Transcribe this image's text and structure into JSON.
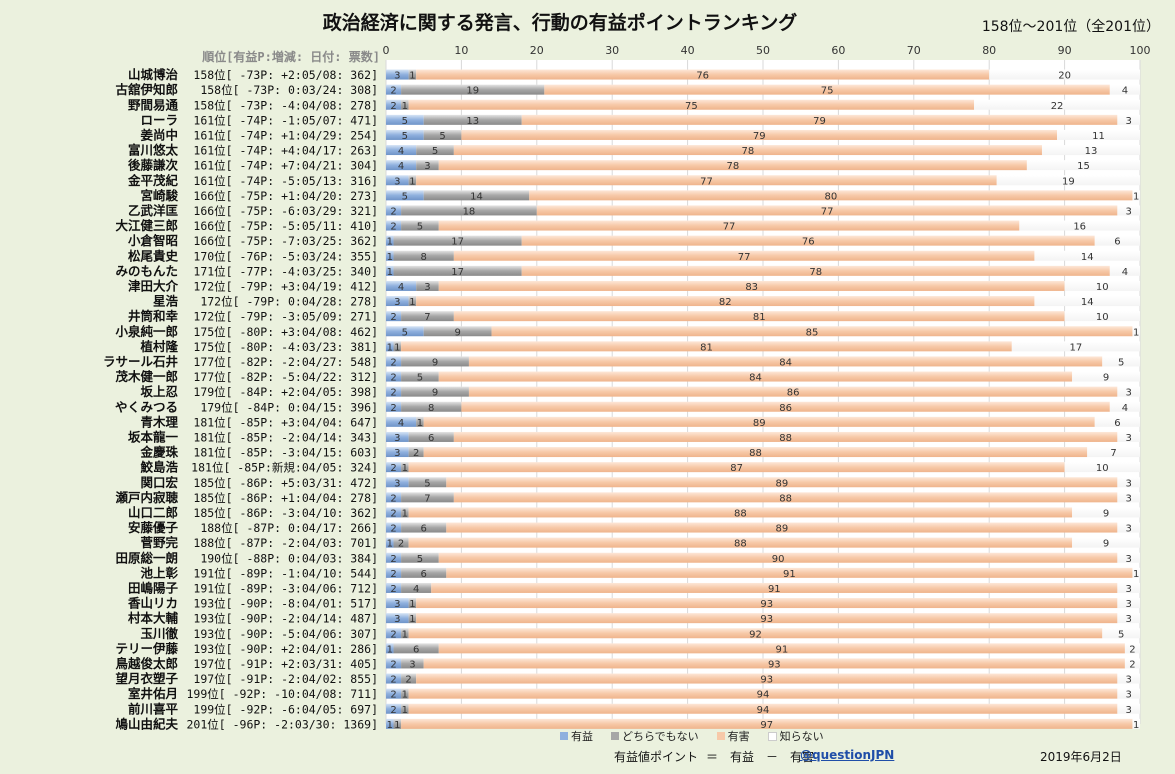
{
  "title": "政治経済に関する発言、行動の有益ポイントランキング",
  "range_label": "158位～201位（全201位）",
  "column_header": "順位[有益P:増減: 日付: 票数]",
  "legend": [
    {
      "name": "有益",
      "color": "#8fb0de"
    },
    {
      "name": "どちらでもない",
      "color": "#a6a6a6"
    },
    {
      "name": "有害",
      "color": "#f7c9a8"
    },
    {
      "name": "知らない",
      "color": "#ffffff"
    }
  ],
  "formula": {
    "label": "有益値ポイント",
    "text": "＝　有益　－　有害"
  },
  "handle": "@questionJPN",
  "date": "2019年6月2日",
  "chart_data": {
    "type": "bar",
    "orientation": "horizontal",
    "stacked": true,
    "xlim": [
      0,
      100
    ],
    "x_ticks": [
      0,
      10,
      20,
      30,
      40,
      50,
      60,
      70,
      80,
      90,
      100
    ],
    "grid": true,
    "legend_position": "bottom",
    "series_names": [
      "有益",
      "どちらでもない",
      "有害",
      "知らない"
    ],
    "rows": [
      {
        "name": "山城博治",
        "rank": "158位[ -73P: +2:05/08:  362]",
        "values": [
          3,
          1,
          76,
          20
        ]
      },
      {
        "name": "古舘伊知郎",
        "rank": "158位[ -73P:  0:03/24:  308]",
        "values": [
          2,
          19,
          75,
          4
        ]
      },
      {
        "name": "野間易通",
        "rank": "158位[ -73P: -4:04/08:  278]",
        "values": [
          2,
          1,
          75,
          22
        ]
      },
      {
        "name": "ローラ",
        "rank": "161位[ -74P: -1:05/07:  471]",
        "values": [
          5,
          13,
          79,
          3
        ]
      },
      {
        "name": "姜尚中",
        "rank": "161位[ -74P: +1:04/29:  254]",
        "values": [
          5,
          5,
          79,
          11
        ]
      },
      {
        "name": "富川悠太",
        "rank": "161位[ -74P: +4:04/17:  263]",
        "values": [
          4,
          5,
          78,
          13
        ]
      },
      {
        "name": "後藤謙次",
        "rank": "161位[ -74P: +7:04/21:  304]",
        "values": [
          4,
          3,
          78,
          15
        ]
      },
      {
        "name": "金平茂紀",
        "rank": "161位[ -74P: -5:05/13:  316]",
        "values": [
          3,
          1,
          77,
          19
        ]
      },
      {
        "name": "宮崎駿",
        "rank": "166位[ -75P: +1:04/20:  273]",
        "values": [
          5,
          14,
          80,
          1
        ]
      },
      {
        "name": "乙武洋匡",
        "rank": "166位[ -75P: -6:03/29:  321]",
        "values": [
          2,
          18,
          77,
          3
        ]
      },
      {
        "name": "大江健三郎",
        "rank": "166位[ -75P: -5:05/11:  410]",
        "values": [
          2,
          5,
          77,
          16
        ]
      },
      {
        "name": "小倉智昭",
        "rank": "166位[ -75P: -7:03/25:  362]",
        "values": [
          1,
          17,
          76,
          6
        ]
      },
      {
        "name": "松尾貴史",
        "rank": "170位[ -76P: -5:03/24:  355]",
        "values": [
          1,
          8,
          77,
          14
        ]
      },
      {
        "name": "みのもんた",
        "rank": "171位[ -77P: -4:03/25:  340]",
        "values": [
          1,
          17,
          78,
          4
        ]
      },
      {
        "name": "津田大介",
        "rank": "172位[ -79P: +3:04/19:  412]",
        "values": [
          4,
          3,
          83,
          10
        ]
      },
      {
        "name": "星浩",
        "rank": "172位[ -79P:  0:04/28:  278]",
        "values": [
          3,
          1,
          82,
          14
        ]
      },
      {
        "name": "井筒和幸",
        "rank": "172位[ -79P: -3:05/09:  271]",
        "values": [
          2,
          7,
          81,
          10
        ]
      },
      {
        "name": "小泉純一郎",
        "rank": "175位[ -80P: +3:04/08:  462]",
        "values": [
          5,
          9,
          85,
          1
        ]
      },
      {
        "name": "植村隆",
        "rank": "175位[ -80P: -4:03/23:  381]",
        "values": [
          1,
          1,
          81,
          17
        ]
      },
      {
        "name": "ラサール石井",
        "rank": "177位[ -82P: -2:04/27:  548]",
        "values": [
          2,
          9,
          84,
          5
        ]
      },
      {
        "name": "茂木健一郎",
        "rank": "177位[ -82P: -5:04/22:  312]",
        "values": [
          2,
          5,
          84,
          9
        ]
      },
      {
        "name": "坂上忍",
        "rank": "179位[ -84P: +2:04/05:  398]",
        "values": [
          2,
          9,
          86,
          3
        ]
      },
      {
        "name": "やくみつる",
        "rank": "179位[ -84P:  0:04/15:  396]",
        "values": [
          2,
          8,
          86,
          4
        ]
      },
      {
        "name": "青木理",
        "rank": "181位[ -85P: +3:04/04:  647]",
        "values": [
          4,
          1,
          89,
          6
        ]
      },
      {
        "name": "坂本龍一",
        "rank": "181位[ -85P: -2:04/14:  343]",
        "values": [
          3,
          6,
          88,
          3
        ]
      },
      {
        "name": "金慶珠",
        "rank": "181位[ -85P: -3:04/15:  603]",
        "values": [
          3,
          2,
          88,
          7
        ]
      },
      {
        "name": "鮫島浩",
        "rank": "181位[ -85P:新規:04/05:  324]",
        "values": [
          2,
          1,
          87,
          10
        ]
      },
      {
        "name": "関口宏",
        "rank": "185位[ -86P: +5:03/31:  472]",
        "values": [
          3,
          5,
          89,
          3
        ]
      },
      {
        "name": "瀬戸内寂聴",
        "rank": "185位[ -86P: +1:04/04:  278]",
        "values": [
          2,
          7,
          88,
          3
        ]
      },
      {
        "name": "山口二郎",
        "rank": "185位[ -86P: -3:04/10:  362]",
        "values": [
          2,
          1,
          88,
          9
        ]
      },
      {
        "name": "安藤優子",
        "rank": "188位[ -87P:  0:04/17:  266]",
        "values": [
          2,
          6,
          89,
          3
        ]
      },
      {
        "name": "菅野完",
        "rank": "188位[ -87P: -2:04/03:  701]",
        "values": [
          1,
          2,
          88,
          9
        ]
      },
      {
        "name": "田原総一朗",
        "rank": "190位[ -88P:  0:04/03:  384]",
        "values": [
          2,
          5,
          90,
          3
        ]
      },
      {
        "name": "池上彰",
        "rank": "191位[ -89P: -1:04/10:  544]",
        "values": [
          2,
          6,
          91,
          1
        ]
      },
      {
        "name": "田嶋陽子",
        "rank": "191位[ -89P: -3:04/06:  712]",
        "values": [
          2,
          4,
          91,
          3
        ]
      },
      {
        "name": "香山リカ",
        "rank": "193位[ -90P: -8:04/01:  517]",
        "values": [
          3,
          1,
          93,
          3
        ]
      },
      {
        "name": "村本大輔",
        "rank": "193位[ -90P: -2:04/14:  487]",
        "values": [
          3,
          1,
          93,
          3
        ]
      },
      {
        "name": "玉川徹",
        "rank": "193位[ -90P: -5:04/06:  307]",
        "values": [
          2,
          1,
          92,
          5
        ]
      },
      {
        "name": "テリー伊藤",
        "rank": "193位[ -90P: +2:04/01:  286]",
        "values": [
          1,
          6,
          91,
          2
        ]
      },
      {
        "name": "鳥越俊太郎",
        "rank": "197位[ -91P: +2:03/31:  405]",
        "values": [
          2,
          3,
          93,
          2
        ]
      },
      {
        "name": "望月衣塑子",
        "rank": "197位[ -91P: -2:04/02:  855]",
        "values": [
          2,
          2,
          93,
          3
        ]
      },
      {
        "name": "室井佑月",
        "rank": "199位[ -92P: -10:04/08:  711]",
        "values": [
          2,
          1,
          94,
          3
        ]
      },
      {
        "name": "前川喜平",
        "rank": "199位[ -92P: -6:04/05:  697]",
        "values": [
          2,
          1,
          94,
          3
        ]
      },
      {
        "name": "鳩山由紀夫",
        "rank": "201位[ -96P: -2:03/30: 1369]",
        "values": [
          1,
          1,
          97,
          1
        ]
      }
    ]
  }
}
